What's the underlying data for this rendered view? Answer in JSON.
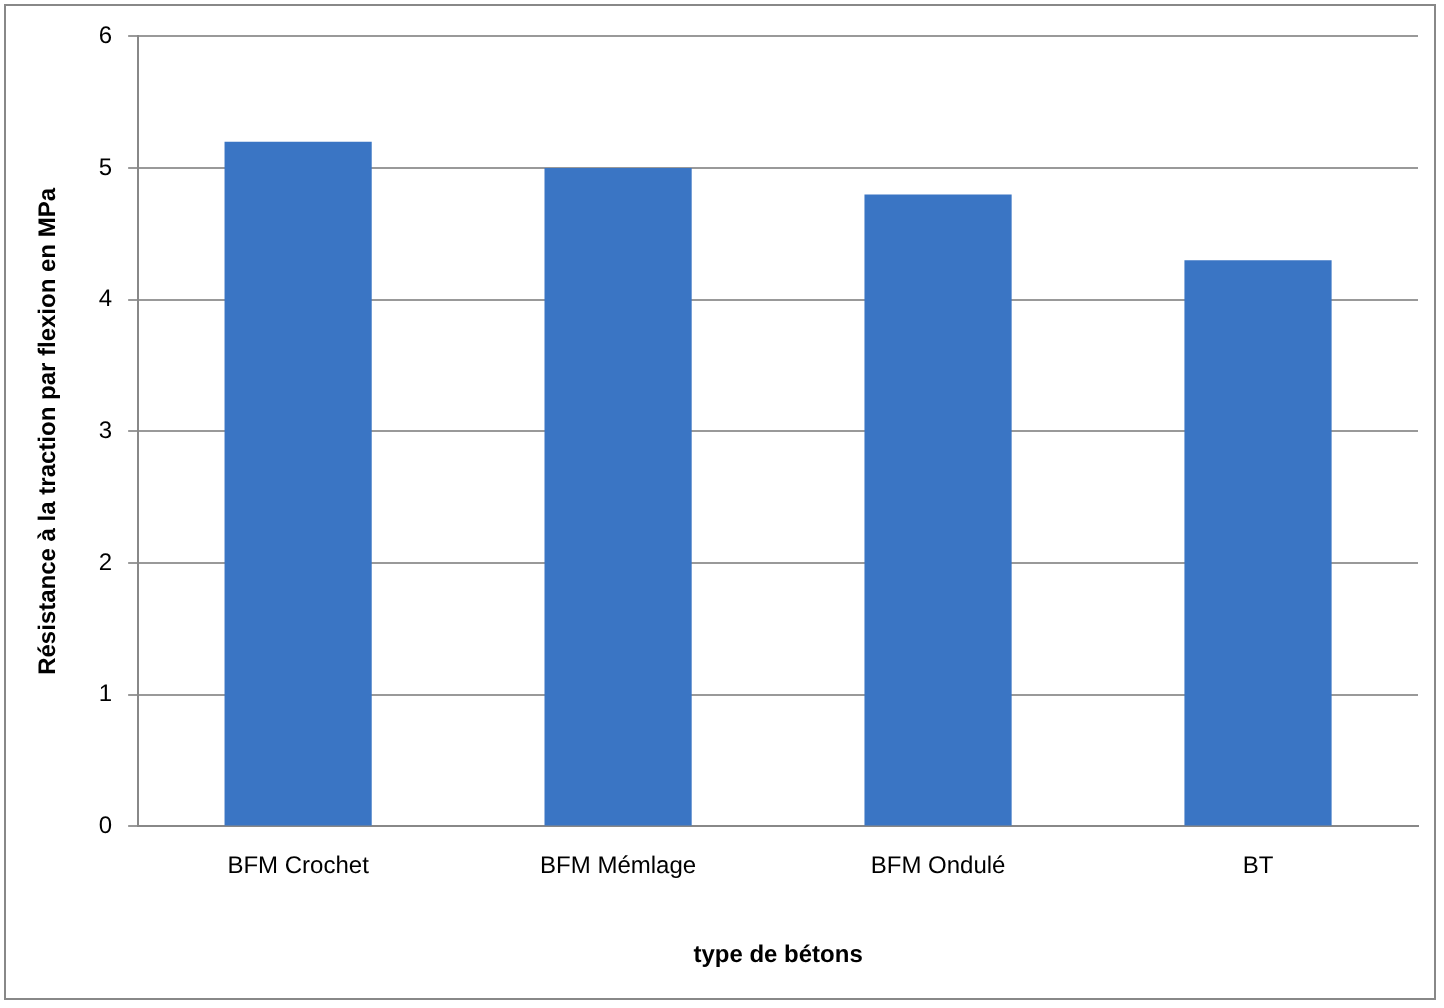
{
  "chart_data": {
    "type": "bar",
    "xlabel": "type de bétons",
    "ylabel": "Résistance à la traction par flexion en MPa",
    "categories": [
      "BFM Crochet",
      "BFM Mémlage",
      "BFM Ondulé",
      "BT"
    ],
    "values": [
      5.2,
      5.0,
      4.8,
      4.3
    ],
    "color": "#3a75c4",
    "ylim": [
      0,
      6
    ],
    "yticks": [
      0,
      1,
      2,
      3,
      4,
      5,
      6
    ],
    "grid": "y",
    "legend": false
  }
}
